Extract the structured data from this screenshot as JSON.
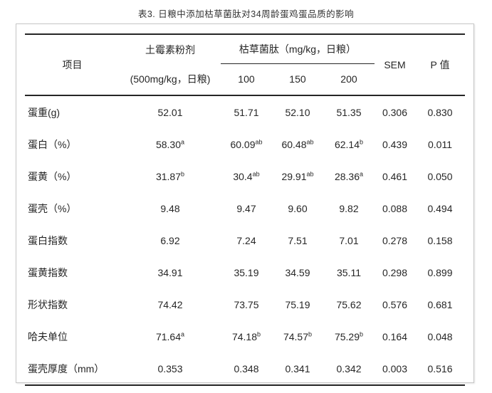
{
  "title": "表3. 日粮中添加枯草菌肽对34周龄蛋鸡蛋品质的影响",
  "colors": {
    "text": "#262626",
    "rule": "#262626",
    "panel_border": "#c6c6c6",
    "background": "#ffffff"
  },
  "table": {
    "header": {
      "item": "项目",
      "oxy_line1": "土霉素粉剂",
      "oxy_line2": "(500mg/kg，日粮)",
      "bac_group": "枯草菌肽（mg/kg，日粮）",
      "doses": [
        "100",
        "150",
        "200"
      ],
      "sem": "SEM",
      "p_value": "P 值"
    },
    "rows": [
      {
        "label": "蛋重(g)",
        "cells": [
          {
            "v": "52.01"
          },
          {
            "v": "51.71"
          },
          {
            "v": "52.10"
          },
          {
            "v": "51.35"
          },
          {
            "v": "0.306"
          },
          {
            "v": "0.830"
          }
        ]
      },
      {
        "label": "蛋白（%）",
        "cells": [
          {
            "v": "58.30",
            "s": "a"
          },
          {
            "v": "60.09",
            "s": "ab"
          },
          {
            "v": "60.48",
            "s": "ab"
          },
          {
            "v": "62.14",
            "s": "b"
          },
          {
            "v": "0.439"
          },
          {
            "v": "0.011"
          }
        ]
      },
      {
        "label": "蛋黄（%）",
        "cells": [
          {
            "v": "31.87",
            "s": "b"
          },
          {
            "v": "30.4",
            "s": "ab"
          },
          {
            "v": "29.91",
            "s": "ab"
          },
          {
            "v": "28.36",
            "s": "a"
          },
          {
            "v": "0.461"
          },
          {
            "v": "0.050"
          }
        ]
      },
      {
        "label": "蛋壳（%）",
        "cells": [
          {
            "v": "9.48"
          },
          {
            "v": "9.47"
          },
          {
            "v": "9.60"
          },
          {
            "v": "9.82"
          },
          {
            "v": "0.088"
          },
          {
            "v": "0.494"
          }
        ]
      },
      {
        "label": "蛋白指数",
        "cells": [
          {
            "v": "6.92"
          },
          {
            "v": "7.24"
          },
          {
            "v": "7.51"
          },
          {
            "v": "7.01"
          },
          {
            "v": "0.278"
          },
          {
            "v": "0.158"
          }
        ]
      },
      {
        "label": "蛋黄指数",
        "cells": [
          {
            "v": "34.91"
          },
          {
            "v": "35.19"
          },
          {
            "v": "34.59"
          },
          {
            "v": "35.11"
          },
          {
            "v": "0.298"
          },
          {
            "v": "0.899"
          }
        ]
      },
      {
        "label": "形状指数",
        "cells": [
          {
            "v": "74.42"
          },
          {
            "v": "73.75"
          },
          {
            "v": "75.19"
          },
          {
            "v": "75.62"
          },
          {
            "v": "0.576"
          },
          {
            "v": "0.681"
          }
        ]
      },
      {
        "label": "哈夫单位",
        "cells": [
          {
            "v": "71.64",
            "s": "a"
          },
          {
            "v": "74.18",
            "s": "b"
          },
          {
            "v": "74.57",
            "s": "b"
          },
          {
            "v": "75.29",
            "s": "b"
          },
          {
            "v": "0.164"
          },
          {
            "v": "0.048"
          }
        ]
      },
      {
        "label": "蛋壳厚度（mm）",
        "cells": [
          {
            "v": "0.353"
          },
          {
            "v": "0.348"
          },
          {
            "v": "0.341"
          },
          {
            "v": "0.342"
          },
          {
            "v": "0.003"
          },
          {
            "v": "0.516"
          }
        ]
      }
    ]
  }
}
